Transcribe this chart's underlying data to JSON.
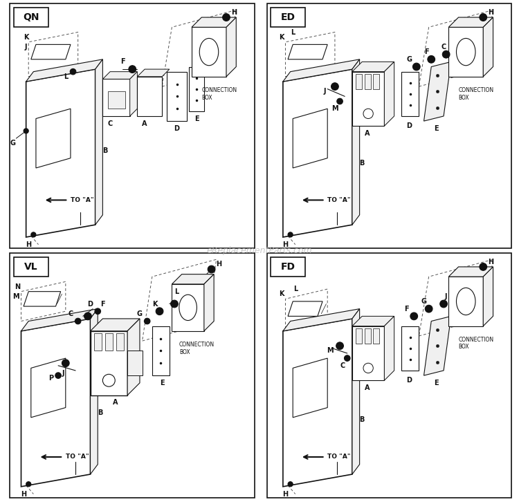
{
  "bg_color": "#ffffff",
  "line_color": "#111111",
  "fill_light": "#f0f0f0",
  "fill_med": "#d8d8d8",
  "watermark": "eReplacementParts.com",
  "panels": [
    "QN",
    "ED",
    "VL",
    "FD"
  ]
}
